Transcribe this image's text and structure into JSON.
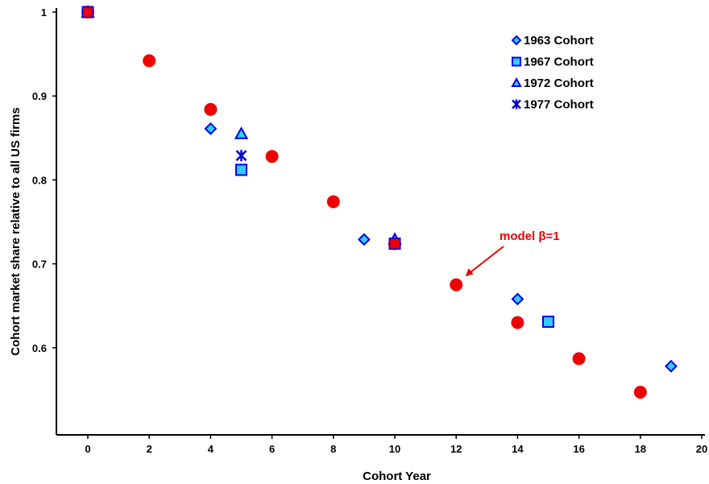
{
  "chart_data": {
    "type": "scatter",
    "xlabel": "Cohort Year",
    "ylabel": "Cohort market share relative to all US firms",
    "xlim": [
      -1,
      20
    ],
    "ylim": [
      0.48,
      1.0
    ],
    "x_ticks": [
      0,
      2,
      4,
      6,
      8,
      10,
      12,
      14,
      16,
      18,
      20
    ],
    "y_ticks": [
      0.6,
      0.7,
      0.8,
      0.9,
      1
    ],
    "grid": false,
    "legend_position": "top-right",
    "series": [
      {
        "name": "1963 Cohort",
        "marker": "diamond",
        "fill": "#33ccff",
        "stroke": "#0000ee",
        "points": [
          [
            0,
            1.0
          ],
          [
            4,
            0.861
          ],
          [
            9,
            0.729
          ],
          [
            14,
            0.658
          ],
          [
            19,
            0.578
          ]
        ]
      },
      {
        "name": "1967 Cohort",
        "marker": "square",
        "fill": "#33ccff",
        "stroke": "#0000ee",
        "points": [
          [
            0,
            1.0
          ],
          [
            5,
            0.812
          ],
          [
            10,
            0.724
          ],
          [
            15,
            0.631
          ]
        ]
      },
      {
        "name": "1972 Cohort",
        "marker": "triangle",
        "fill": "#33ccff",
        "stroke": "#0000ee",
        "points": [
          [
            0,
            1.0
          ],
          [
            5,
            0.855
          ],
          [
            10,
            0.729
          ]
        ]
      },
      {
        "name": "1977 Cohort",
        "marker": "asterisk",
        "fill": "#0000cc",
        "stroke": "#0000cc",
        "points": [
          [
            0,
            1.0
          ],
          [
            5,
            0.829
          ]
        ]
      },
      {
        "name": "",
        "marker": "circle",
        "fill": "#ee0000",
        "stroke": "#ee0000",
        "points": [
          [
            0,
            1.0
          ],
          [
            2,
            0.942
          ],
          [
            4,
            0.884
          ],
          [
            6,
            0.828
          ],
          [
            8,
            0.774
          ],
          [
            10,
            0.724
          ],
          [
            12,
            0.675
          ],
          [
            14,
            0.63
          ],
          [
            16,
            0.587
          ],
          [
            18,
            0.547
          ]
        ]
      }
    ],
    "annotations": [
      {
        "text": "model β=1",
        "color": "#ee0000",
        "arrow_to": [
          12.3,
          0.685
        ]
      }
    ]
  }
}
